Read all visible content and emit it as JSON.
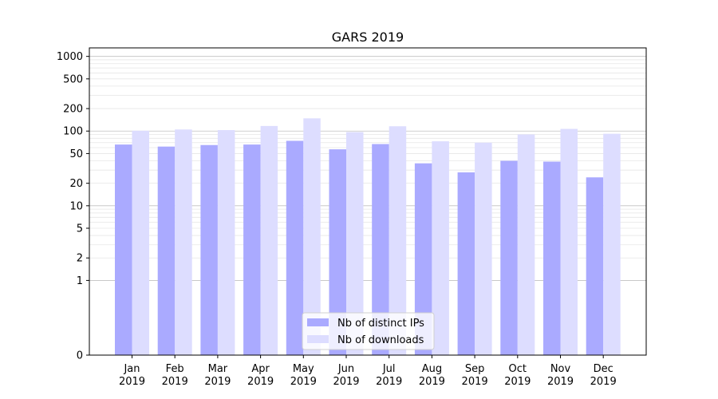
{
  "chart_data": {
    "type": "bar",
    "title": "GARS 2019",
    "xlabel": "",
    "ylabel": "",
    "y_scale": "symlog",
    "ylim": [
      0,
      1300
    ],
    "y_ticks": [
      0,
      1,
      2,
      5,
      10,
      20,
      50,
      100,
      200,
      500,
      1000
    ],
    "y_tick_labels": [
      "0",
      "1",
      "2",
      "5",
      "10",
      "20",
      "50",
      "100",
      "200",
      "500",
      "1000"
    ],
    "grid": true,
    "legend_position": "lower-center",
    "categories": [
      [
        "Jan",
        "2019"
      ],
      [
        "Feb",
        "2019"
      ],
      [
        "Mar",
        "2019"
      ],
      [
        "Apr",
        "2019"
      ],
      [
        "May",
        "2019"
      ],
      [
        "Jun",
        "2019"
      ],
      [
        "Jul",
        "2019"
      ],
      [
        "Aug",
        "2019"
      ],
      [
        "Sep",
        "2019"
      ],
      [
        "Oct",
        "2019"
      ],
      [
        "Nov",
        "2019"
      ],
      [
        "Dec",
        "2019"
      ]
    ],
    "series": [
      {
        "name": "Nb of distinct IPs",
        "color": "#aaaaff",
        "values": [
          66,
          62,
          65,
          66,
          74,
          57,
          67,
          37,
          28,
          40,
          39,
          24
        ]
      },
      {
        "name": "Nb of downloads",
        "color": "#ddddff",
        "values": [
          101,
          105,
          103,
          117,
          148,
          97,
          116,
          73,
          70,
          90,
          107,
          92
        ]
      }
    ]
  }
}
